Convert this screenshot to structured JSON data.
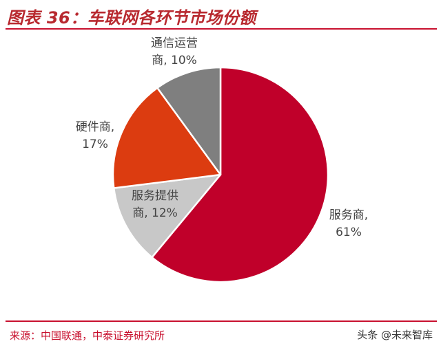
{
  "header": {
    "title": "图表 36：车联网各环节市场份额"
  },
  "footer": {
    "source": "来源：中国联通，中泰证券研究所",
    "watermark": "头条 @未来智库"
  },
  "chart_data": {
    "type": "pie",
    "title": "图表 36：车联网各环节市场份额",
    "slices": [
      {
        "label_line1": "服务商,",
        "label_line2": "61%",
        "value": 61,
        "color": "#c0002a"
      },
      {
        "label_line1": "服务提供",
        "label_line2": "商, 12%",
        "value": 12,
        "color": "#c8c8c8"
      },
      {
        "label_line1": "硬件商,",
        "label_line2": "17%",
        "value": 17,
        "color": "#dc3c10"
      },
      {
        "label_line1": "通信运营",
        "label_line2": "商, 10%",
        "value": 10,
        "color": "#7f7f7f"
      }
    ]
  }
}
